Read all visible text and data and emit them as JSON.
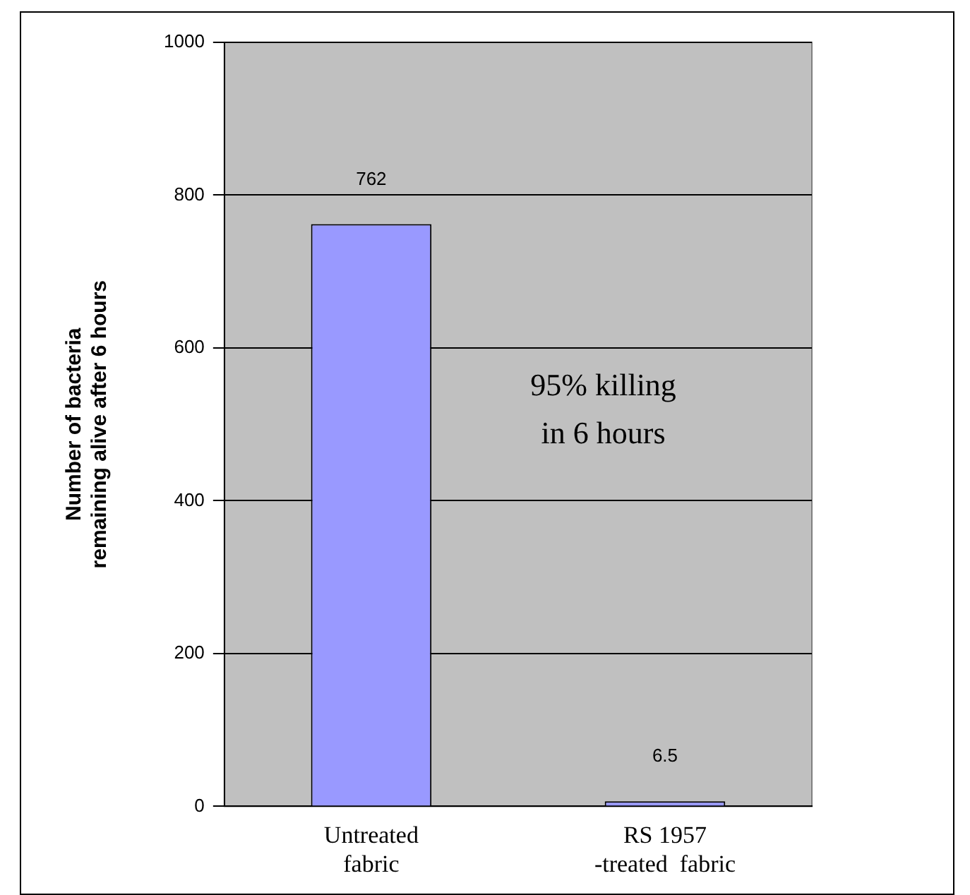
{
  "chart_data": {
    "type": "bar",
    "ylabel": "Number of bacteria\nremaining alive after 6 hours",
    "categories": [
      "Untreated\nfabric",
      "RS 1957\n-treated  fabric"
    ],
    "values": [
      762,
      6.5
    ],
    "color": "#9999ff",
    "ylim": [
      0,
      1000
    ],
    "yticks": [
      0,
      200,
      400,
      600,
      800,
      1000
    ],
    "grid": "y",
    "data_labels": true,
    "legend": false,
    "annotations": [
      "95% killing\nin 6 hours"
    ]
  }
}
